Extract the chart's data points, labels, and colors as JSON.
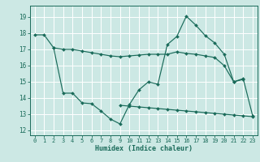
{
  "xlabel": "Humidex (Indice chaleur)",
  "bg_color": "#cce8e4",
  "grid_color": "#b0d8d2",
  "line_color": "#1a6b5a",
  "xlim": [
    -0.5,
    23.5
  ],
  "ylim": [
    11.7,
    19.7
  ],
  "yticks": [
    12,
    13,
    14,
    15,
    16,
    17,
    18,
    19
  ],
  "xticks": [
    0,
    1,
    2,
    3,
    4,
    5,
    6,
    7,
    8,
    9,
    10,
    11,
    12,
    13,
    14,
    15,
    16,
    17,
    18,
    19,
    20,
    21,
    22,
    23
  ],
  "lineA_x": [
    0,
    1,
    2,
    3,
    4,
    5,
    6,
    7,
    8,
    9,
    10,
    11,
    12,
    13,
    14,
    15,
    16,
    17,
    18,
    19,
    20,
    21,
    22
  ],
  "lineA_y": [
    17.9,
    17.9,
    17.1,
    17.0,
    17.0,
    16.9,
    16.8,
    16.7,
    16.6,
    16.55,
    16.6,
    16.65,
    16.7,
    16.7,
    16.7,
    16.85,
    16.75,
    16.7,
    16.6,
    16.5,
    16.0,
    15.0,
    15.15
  ],
  "lineB_x": [
    2,
    3,
    4,
    5,
    6,
    7,
    8,
    9,
    10,
    11,
    12,
    13,
    14,
    15,
    16,
    17,
    18,
    19,
    20,
    21,
    22,
    23
  ],
  "lineB_y": [
    17.1,
    14.3,
    14.3,
    13.7,
    13.65,
    13.2,
    12.7,
    12.4,
    13.6,
    14.5,
    15.0,
    14.85,
    17.3,
    17.8,
    19.05,
    18.5,
    17.85,
    17.4,
    16.7,
    15.0,
    15.2,
    12.9
  ],
  "lineC_x": [
    9,
    10,
    11,
    12,
    13,
    14,
    15,
    16,
    17,
    18,
    19,
    20,
    21,
    22,
    23
  ],
  "lineC_y": [
    13.55,
    13.5,
    13.45,
    13.4,
    13.35,
    13.3,
    13.25,
    13.2,
    13.15,
    13.1,
    13.05,
    13.0,
    12.95,
    12.9,
    12.85
  ]
}
